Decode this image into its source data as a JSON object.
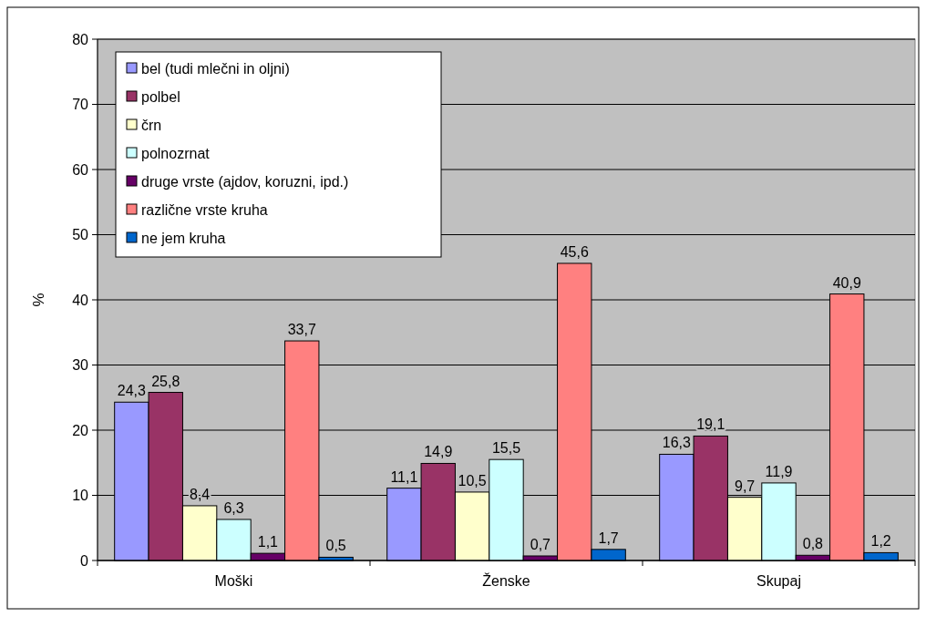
{
  "chart_data": {
    "type": "bar",
    "ylabel": "%",
    "categories": [
      "Moški",
      "Ženske",
      "Skupaj"
    ],
    "series": [
      {
        "name": "bel (tudi mlečni in oljni)",
        "color": "#9999ff",
        "values": [
          24.3,
          11.1,
          16.3
        ],
        "value_labels": [
          "24,3",
          "11,1",
          "16,3"
        ]
      },
      {
        "name": "polbel",
        "color": "#993366",
        "values": [
          25.8,
          14.9,
          19.1
        ],
        "value_labels": [
          "25,8",
          "14,9",
          "19,1"
        ]
      },
      {
        "name": "črn",
        "color": "#ffffcc",
        "values": [
          8.4,
          10.5,
          9.7
        ],
        "value_labels": [
          "8,4",
          "10,5",
          "9,7"
        ]
      },
      {
        "name": "polnozrnat",
        "color": "#ccffff",
        "values": [
          6.3,
          15.5,
          11.9
        ],
        "value_labels": [
          "6,3",
          "15,5",
          "11,9"
        ]
      },
      {
        "name": "druge vrste (ajdov, koruzni, ipd.)",
        "color": "#660066",
        "values": [
          1.1,
          0.7,
          0.8
        ],
        "value_labels": [
          "1,1",
          "0,7",
          "0,8"
        ]
      },
      {
        "name": "različne vrste kruha",
        "color": "#ff8080",
        "values": [
          33.7,
          45.6,
          40.9
        ],
        "value_labels": [
          "33,7",
          "45,6",
          "40,9"
        ]
      },
      {
        "name": "ne jem kruha",
        "color": "#0066cc",
        "values": [
          0.5,
          1.7,
          1.2
        ],
        "value_labels": [
          "0,5",
          "1,7",
          "1,2"
        ]
      }
    ],
    "ylim": [
      0,
      80
    ],
    "yticks": [
      0,
      10,
      20,
      30,
      40,
      50,
      60,
      70,
      80
    ],
    "grid": "y",
    "legend": "top left"
  }
}
